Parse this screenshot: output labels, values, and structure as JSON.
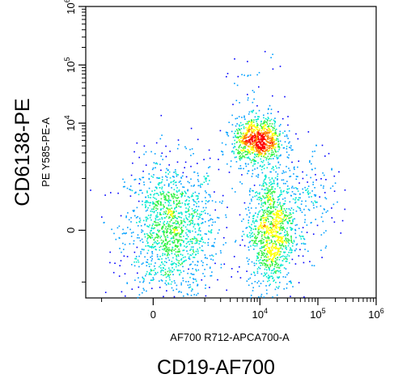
{
  "chart_data": {
    "type": "scatter",
    "title": "",
    "xlabel": "AF700 R712-APCA700-A",
    "ylabel": "PE Y585-PE-A",
    "outer_xlabel": "CD19-AF700",
    "outer_ylabel": "CD6138-PE",
    "x_scale": "logicle",
    "y_scale": "logicle",
    "xlim": [
      -2000,
      1000000
    ],
    "ylim": [
      -2000,
      1000000
    ],
    "x_ticks": [
      {
        "value": 0,
        "base": "0",
        "exp": ""
      },
      {
        "value": 10000,
        "base": "10",
        "exp": "4"
      },
      {
        "value": 100000,
        "base": "10",
        "exp": "5"
      },
      {
        "value": 1000000,
        "base": "10",
        "exp": "6"
      }
    ],
    "y_ticks": [
      {
        "value": 0,
        "base": "0",
        "exp": ""
      },
      {
        "value": 10000,
        "base": "10",
        "exp": "4"
      },
      {
        "value": 100000,
        "base": "10",
        "exp": "5"
      },
      {
        "value": 1000000,
        "base": "10",
        "exp": "6"
      }
    ],
    "grid": false,
    "density_colors": [
      "#0000ff",
      "#00a0ff",
      "#00e8d0",
      "#30f040",
      "#ffff00",
      "#ff8000",
      "#ff0000"
    ],
    "populations": [
      {
        "name": "",
        "center": [
          150,
          0
        ],
        "spread": [
          450,
          450
        ],
        "points": 1400
      },
      {
        "name": "",
        "center": [
          15000,
          0
        ],
        "spread": [
          9000,
          350
        ],
        "points": 1100
      },
      {
        "name": "",
        "center": [
          9000,
          5000
        ],
        "spread": [
          6000,
          3000
        ],
        "points": 900
      },
      {
        "name": "",
        "center": [
          60000,
          300
        ],
        "spread": [
          50000,
          800
        ],
        "points": 200
      },
      {
        "name": "",
        "center": [
          8000,
          40000
        ],
        "spread": [
          8000,
          40000
        ],
        "points": 40
      }
    ]
  }
}
